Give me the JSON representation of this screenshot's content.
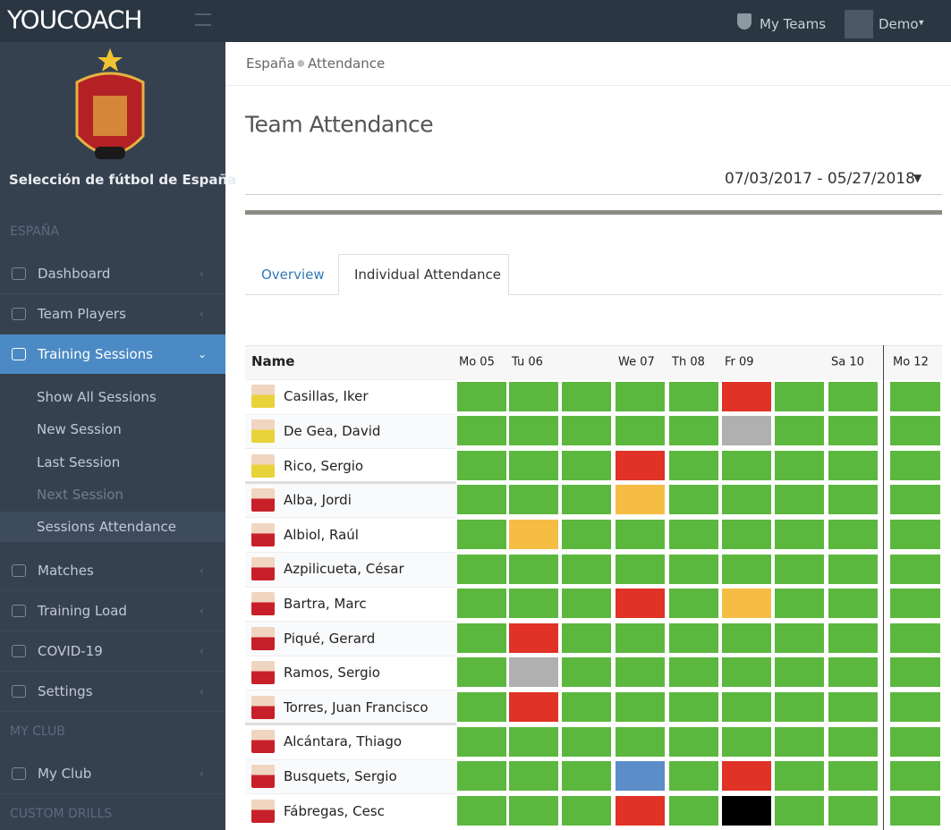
{
  "topbar": {
    "brand": "YOUCOACH",
    "my_teams": "My Teams",
    "user": "Demo"
  },
  "sidebar": {
    "team_name": "Selección de fútbol de España",
    "sections": [
      {
        "heading": "ESPAÑA",
        "items": [
          "Dashboard",
          "Team Players",
          "Training Sessions"
        ]
      },
      {
        "submenu": [
          "Show All Sessions",
          "New Session",
          "Last Session",
          "Next Session",
          "Sessions Attendance"
        ]
      },
      {
        "items": [
          "Matches",
          "Training Load",
          "COVID-19",
          "Settings"
        ]
      },
      {
        "heading": "MY CLUB",
        "items": [
          "My Club"
        ]
      },
      {
        "heading": "CUSTOM DRILLS"
      }
    ]
  },
  "breadcrumb": [
    "España",
    "Attendance"
  ],
  "title": "Team Attendance",
  "date_range": "07/03/2017 - 05/27/2018",
  "tabs": [
    "Overview",
    "Individual Attendance"
  ],
  "table": {
    "name_header": "Name",
    "days": [
      "Mo 05",
      "Tu 06",
      null,
      "We 07",
      "Th 08",
      "Fr 09",
      null,
      "Sa 10",
      "Mo 12"
    ],
    "rows": [
      {
        "name": "Casillas, Iker",
        "cells": [
          "#5cb73f",
          "#5cb73f",
          "#5cb73f",
          "#5cb73f",
          "#5cb73f",
          "#e03226",
          "#5cb73f",
          "#5cb73f",
          "#5cb73f"
        ]
      },
      {
        "name": "De Gea, David",
        "cells": [
          "#5cb73f",
          "#5cb73f",
          "#5cb73f",
          "#5cb73f",
          "#5cb73f",
          "#b0b0b0",
          "#5cb73f",
          "#5cb73f",
          "#5cb73f"
        ]
      },
      {
        "name": "Rico, Sergio",
        "cells": [
          "#5cb73f",
          "#5cb73f",
          "#5cb73f",
          "#e03226",
          "#5cb73f",
          "#5cb73f",
          "#5cb73f",
          "#5cb73f",
          "#5cb73f"
        ]
      },
      {
        "name": "Alba, Jordi",
        "cells": [
          "#5cb73f",
          "#5cb73f",
          "#5cb73f",
          "#f6bd45",
          "#5cb73f",
          "#5cb73f",
          "#5cb73f",
          "#5cb73f",
          "#5cb73f"
        ]
      },
      {
        "name": "Albiol, Raúl",
        "cells": [
          "#5cb73f",
          "#f6bd45",
          "#5cb73f",
          "#5cb73f",
          "#5cb73f",
          "#5cb73f",
          "#5cb73f",
          "#5cb73f",
          "#5cb73f"
        ]
      },
      {
        "name": "Azpilicueta, César",
        "cells": [
          "#5cb73f",
          "#5cb73f",
          "#5cb73f",
          "#5cb73f",
          "#5cb73f",
          "#5cb73f",
          "#5cb73f",
          "#5cb73f",
          "#5cb73f"
        ]
      },
      {
        "name": "Bartra, Marc",
        "cells": [
          "#5cb73f",
          "#5cb73f",
          "#5cb73f",
          "#e03226",
          "#5cb73f",
          "#f6bd45",
          "#5cb73f",
          "#5cb73f",
          "#5cb73f"
        ]
      },
      {
        "name": "Piqué, Gerard",
        "cells": [
          "#5cb73f",
          "#e03226",
          "#5cb73f",
          "#5cb73f",
          "#5cb73f",
          "#5cb73f",
          "#5cb73f",
          "#5cb73f",
          "#5cb73f"
        ]
      },
      {
        "name": "Ramos, Sergio",
        "cells": [
          "#5cb73f",
          "#b0b0b0",
          "#5cb73f",
          "#5cb73f",
          "#5cb73f",
          "#5cb73f",
          "#5cb73f",
          "#5cb73f",
          "#5cb73f"
        ]
      },
      {
        "name": "Torres, Juan Francisco",
        "cells": [
          "#5cb73f",
          "#e03226",
          "#5cb73f",
          "#5cb73f",
          "#5cb73f",
          "#5cb73f",
          "#5cb73f",
          "#5cb73f",
          "#5cb73f"
        ]
      },
      {
        "name": "Alcántara, Thiago",
        "cells": [
          "#5cb73f",
          "#5cb73f",
          "#5cb73f",
          "#5cb73f",
          "#5cb73f",
          "#5cb73f",
          "#5cb73f",
          "#5cb73f",
          "#5cb73f"
        ]
      },
      {
        "name": "Busquets, Sergio",
        "cells": [
          "#5cb73f",
          "#5cb73f",
          "#5cb73f",
          "#5b8ec9",
          "#5cb73f",
          "#e03226",
          "#5cb73f",
          "#5cb73f",
          "#5cb73f"
        ]
      },
      {
        "name": "Fábregas, Cesc",
        "cells": [
          "#5cb73f",
          "#5cb73f",
          "#5cb73f",
          "#e03226",
          "#5cb73f",
          "#000000",
          "#5cb73f",
          "#5cb73f",
          "#5cb73f"
        ]
      }
    ]
  }
}
